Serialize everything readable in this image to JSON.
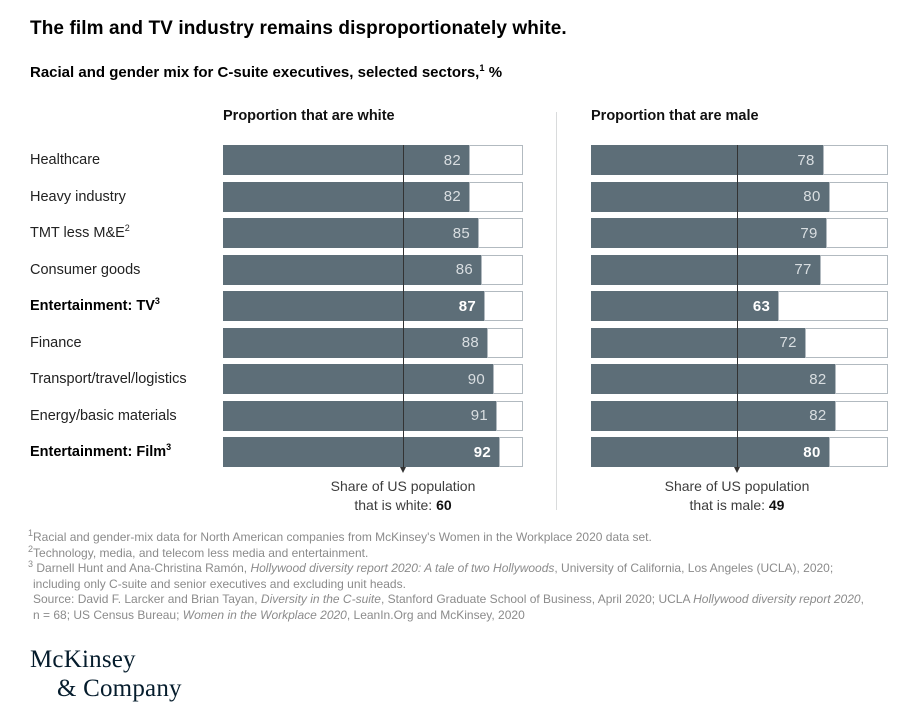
{
  "title": "The film and TV industry remains disproportionately white.",
  "subtitle": {
    "text": "Racial and gender mix for C-suite executives, selected sectors,",
    "sup": "1",
    "unit": " %"
  },
  "chart_data": {
    "type": "bar",
    "orientation": "horizontal",
    "value_range": [
      0,
      100
    ],
    "unit": "%",
    "bar_color": "#5d6e78",
    "categories": [
      {
        "label": "Healthcare",
        "sup": ""
      },
      {
        "label": "Heavy industry",
        "sup": ""
      },
      {
        "label": "TMT less M&E",
        "sup": "2"
      },
      {
        "label": "Consumer goods",
        "sup": ""
      },
      {
        "label": "Entertainment: TV",
        "sup": "3"
      },
      {
        "label": "Finance",
        "sup": ""
      },
      {
        "label": "Transport/travel/logistics",
        "sup": ""
      },
      {
        "label": "Energy/basic materials",
        "sup": ""
      },
      {
        "label": "Entertainment: Film",
        "sup": "3"
      }
    ],
    "highlight_rows": [
      4,
      8
    ],
    "series": [
      {
        "name": "Proportion that are white",
        "values": [
          82,
          82,
          85,
          86,
          87,
          88,
          90,
          91,
          92
        ]
      },
      {
        "name": "Proportion that are male",
        "values": [
          78,
          80,
          79,
          77,
          63,
          72,
          82,
          82,
          80
        ]
      }
    ],
    "reference_lines": [
      {
        "series": 0,
        "value": 60,
        "label_line1": "Share of US population",
        "label_line2": "that is white: ",
        "label_value": "60"
      },
      {
        "series": 1,
        "value": 49,
        "label_line1": "Share of US population",
        "label_line2": "that is male: ",
        "label_value": "49"
      }
    ]
  },
  "footnotes": [
    {
      "name": "footnote-1",
      "indent": false,
      "segments": [
        {
          "sup": "1"
        },
        {
          "t": "Racial and gender-mix data for North American companies from McKinsey's Women in the Workplace 2020 data set."
        }
      ]
    },
    {
      "name": "footnote-2",
      "indent": false,
      "segments": [
        {
          "sup": "2"
        },
        {
          "t": "Technology, media, and telecom less media and entertainment."
        }
      ]
    },
    {
      "name": "footnote-3",
      "indent": false,
      "segments": [
        {
          "sup": "3"
        },
        {
          "t": " Darnell Hunt and Ana-Christina Ramón, "
        },
        {
          "t": "Hollywood diversity report 2020: A tale of two Hollywoods",
          "i": true
        },
        {
          "t": ", University of California, Los Angeles (UCLA), 2020;"
        }
      ]
    },
    {
      "name": "footnote-3-continued",
      "indent": true,
      "segments": [
        {
          "t": "including only C-suite and senior executives and excluding unit heads."
        }
      ]
    },
    {
      "name": "source-line-1",
      "indent": true,
      "segments": [
        {
          "t": "Source: David F. Larcker and Brian Tayan, "
        },
        {
          "t": "Diversity in the C-suite",
          "i": true
        },
        {
          "t": ", Stanford Graduate School of Business, April 2020; UCLA "
        },
        {
          "t": "Hollywood diversity report 2020",
          "i": true
        },
        {
          "t": ","
        }
      ]
    },
    {
      "name": "source-line-2",
      "indent": true,
      "segments": [
        {
          "t": "n = 68; US Census Bureau; "
        },
        {
          "t": "Women in the Workplace 2020",
          "i": true
        },
        {
          "t": ", LeanIn.Org and McKinsey, 2020"
        }
      ]
    }
  ],
  "logo": {
    "line1": "McKinsey",
    "line2": "& Company",
    "color": "#051c2c"
  }
}
